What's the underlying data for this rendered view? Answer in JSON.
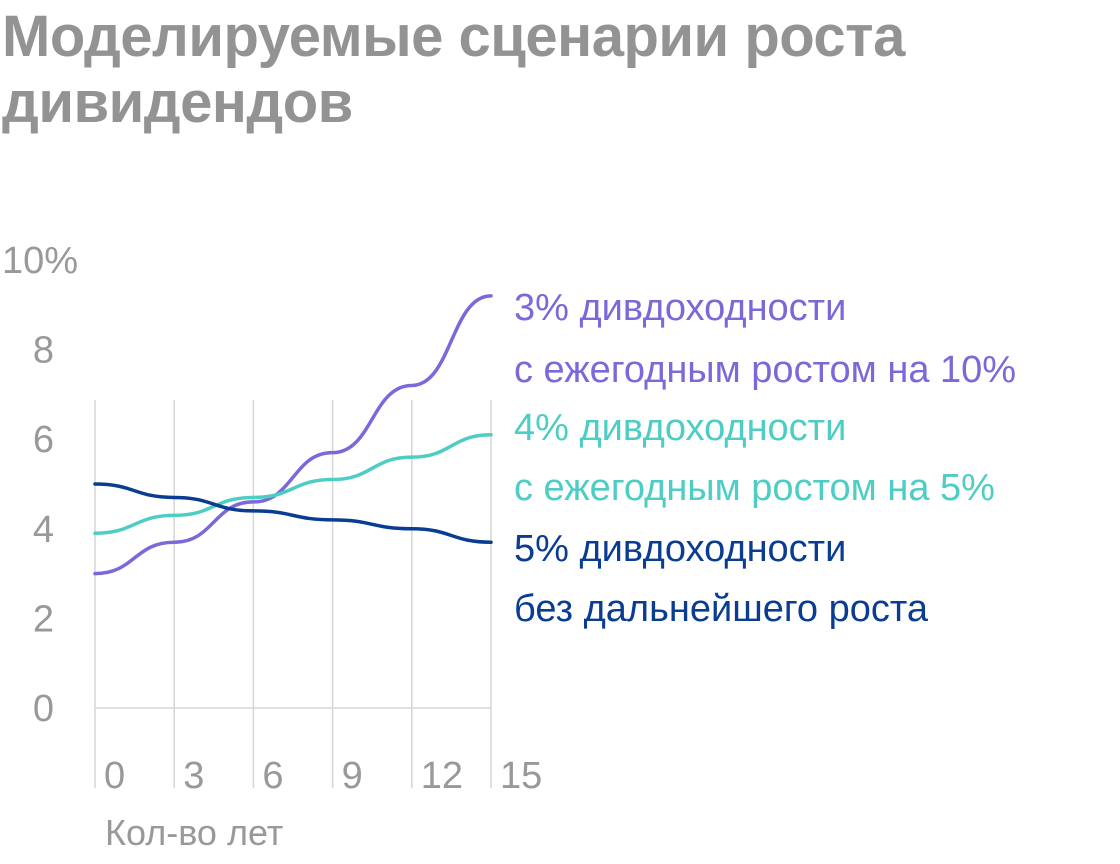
{
  "chart_data": {
    "type": "line",
    "title": "Моделируемые сценарии роста дивидендов",
    "xlabel": "Кол-во лет",
    "ylabel": "",
    "x": [
      0,
      3,
      6,
      9,
      12,
      15
    ],
    "xlim": [
      0,
      15
    ],
    "ylim": [
      0,
      10
    ],
    "x_ticks": [
      "0",
      "3",
      "6",
      "9",
      "12",
      "15"
    ],
    "y_ticks": [
      "0",
      "2",
      "4",
      "6",
      "8",
      "10%"
    ],
    "grid": "vertical",
    "legend": "right",
    "series": [
      {
        "name_lines": [
          "3% дивдоходности",
          "с ежегодным ростом на 10%"
        ],
        "color": "#7b68d9",
        "values": [
          3.0,
          3.7,
          4.6,
          5.7,
          7.2,
          9.2
        ]
      },
      {
        "name_lines": [
          "4% дивдоходности",
          "с ежегодным ростом на 5%"
        ],
        "color": "#4ecdc4",
        "values": [
          3.9,
          4.3,
          4.7,
          5.1,
          5.6,
          6.1
        ]
      },
      {
        "name_lines": [
          "5% дивдоходности",
          "без дальнейшего роста"
        ],
        "color": "#0a3d91",
        "values": [
          5.0,
          4.7,
          4.4,
          4.2,
          4.0,
          3.7
        ]
      }
    ]
  }
}
